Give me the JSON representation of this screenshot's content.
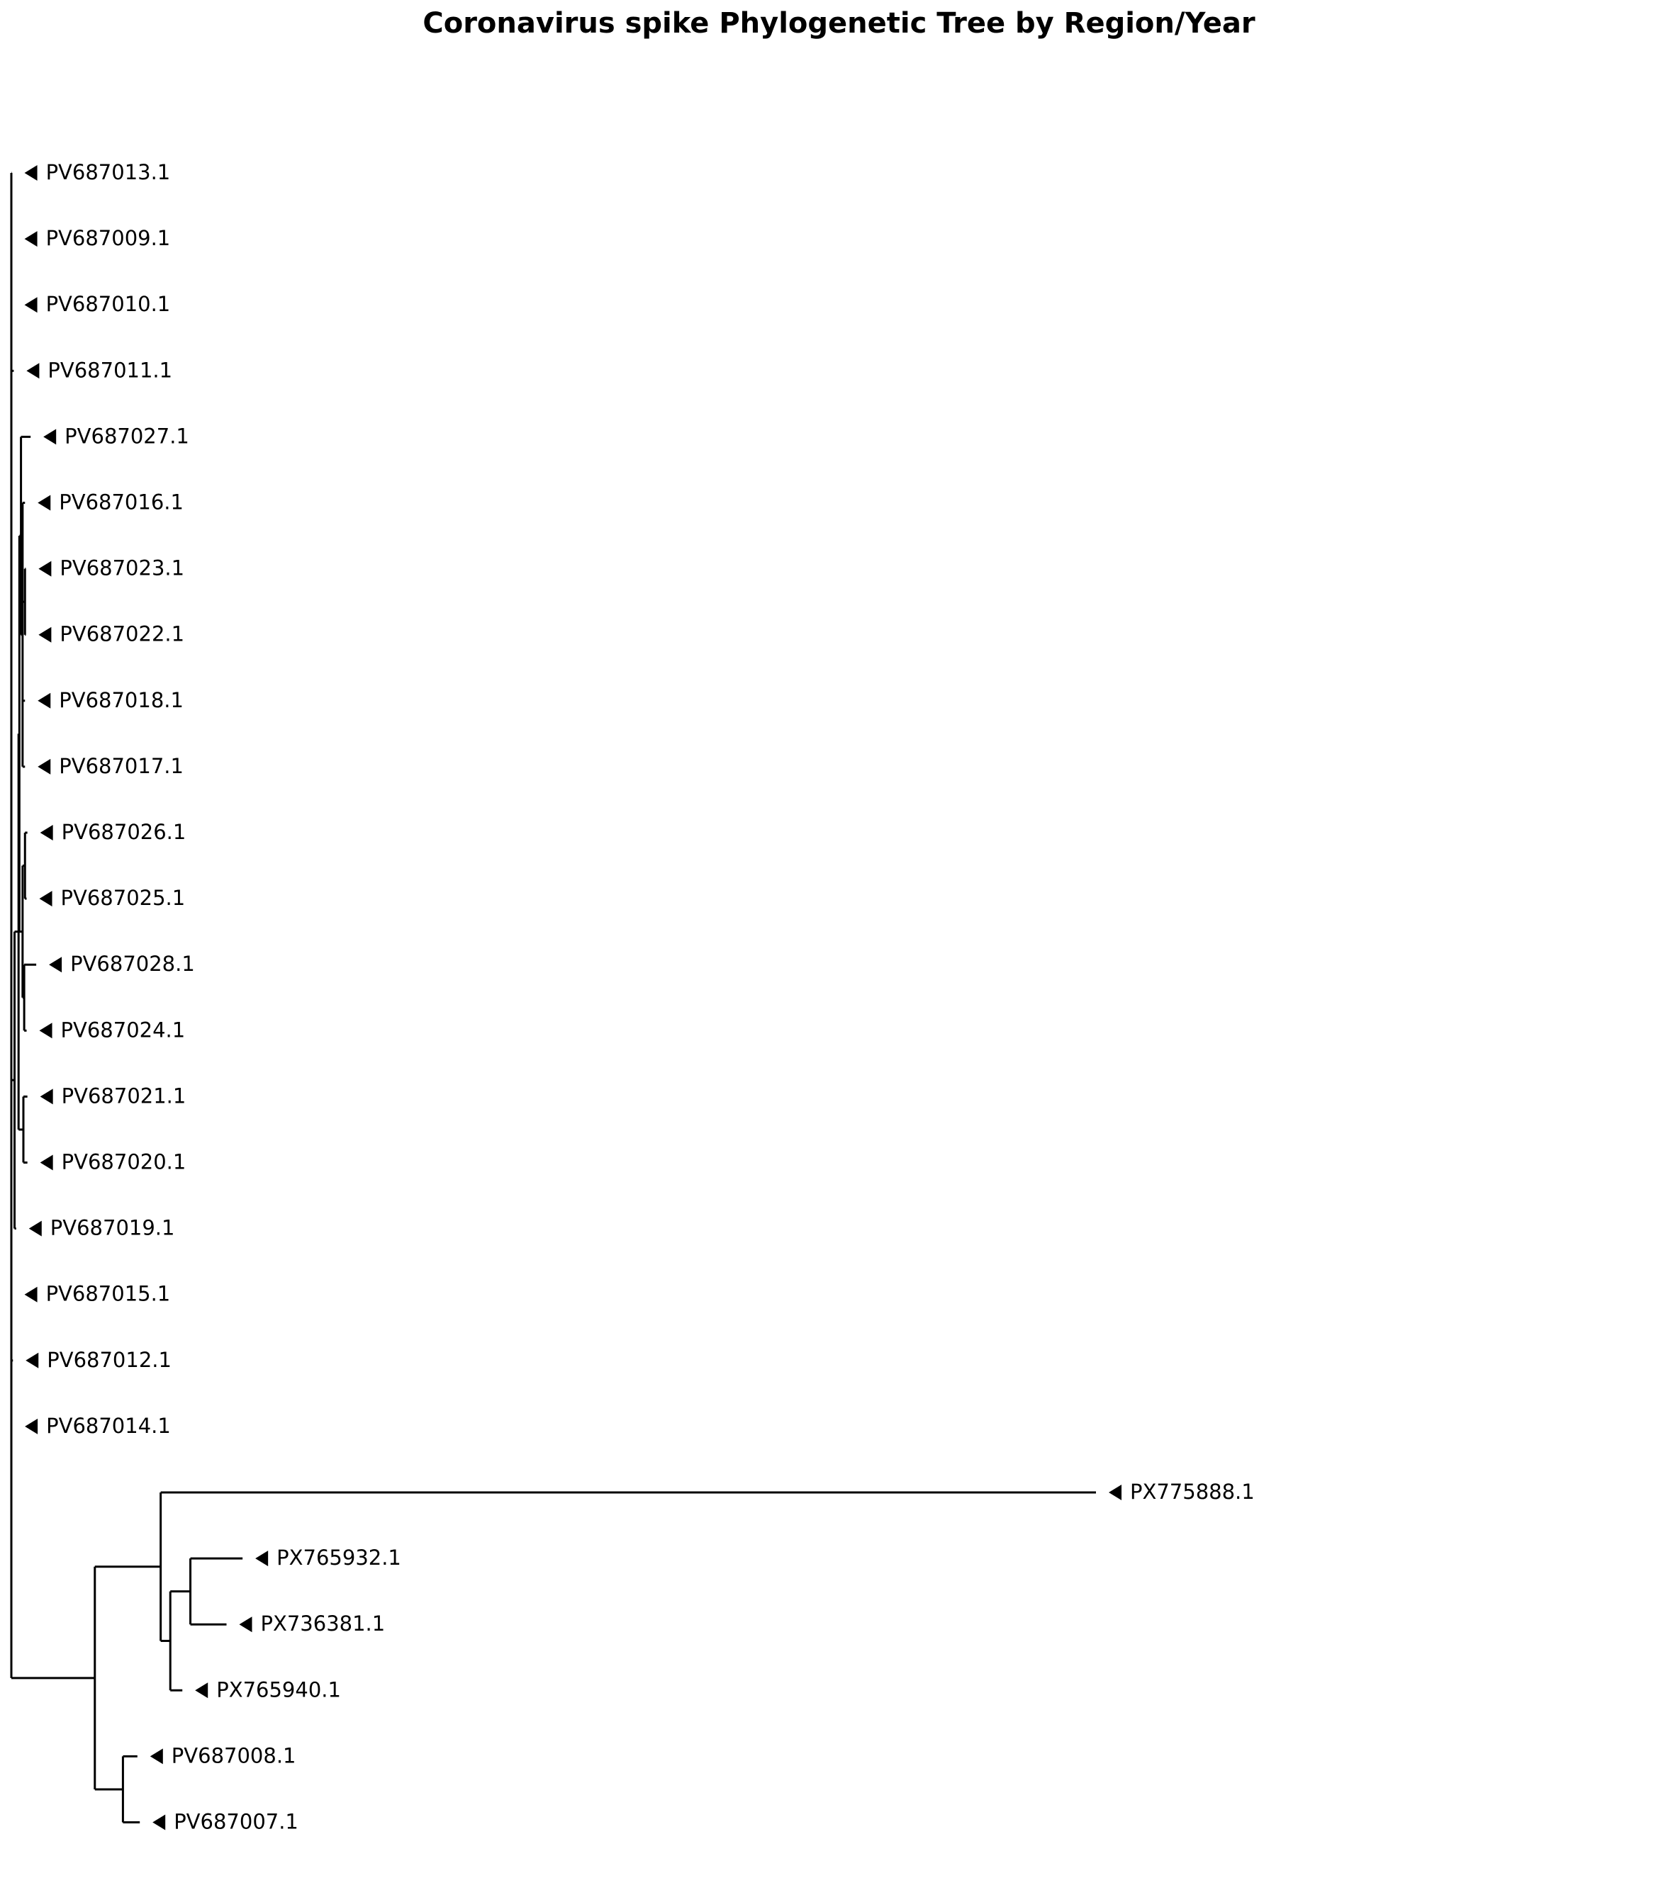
{
  "title": "Coronavirus spike Phylogenetic Tree by Region/Year",
  "tree": {
    "tips": [
      "PV687013.1",
      "PV687009.1",
      "PV687010.1",
      "PV687011.1",
      "PV687027.1",
      "PV687016.1",
      "PV687023.1",
      "PV687022.1",
      "PV687018.1",
      "PV687017.1",
      "PV687026.1",
      "PV687025.1",
      "PV687028.1",
      "PV687024.1",
      "PV687021.1",
      "PV687020.1",
      "PV687019.1",
      "PV687015.1",
      "PV687012.1",
      "PV687014.1",
      "PX775888.1",
      "PX765932.1",
      "PX736381.1",
      "PX765940.1",
      "PV687008.1",
      "PV687007.1"
    ],
    "newick": "(PV687013.1:0.00005,PV687009.1:0.00005,PV687010.1:0.00005,PV687011.1:0.0003,((((PV687027.1:0.0012,(PV687016.1:0.0003,(PV687023.1:0.0001,PV687022.1:0.0001):0.0003,PV687018.1:0.0003,PV687017.1:0.0003):0.0002):0.0002,((PV687026.1:0.0003,PV687025.1:0.0002):0.0003,(PV687028.1:0.0015,PV687024.1:0.0003):0.0002):0.0004):0.0001,(PV687021.1:0.0005,PV687020.1:0.0005):0.0006):0.0005,PV687019.1:0.0002):0.0004,PV687015.1:0.00005,PV687012.1:0.0002,PV687014.1:0.0001,(((PX775888.1:0.1165,((PX765932.1:0.0065,PX736381.1:0.0045):0.0025,PX765940.1:0.0015):0.0012):0.0082,(PV687008.1:0.0018,PV687007.1:0.0021):0.0035):0.0104):0.0)",
    "branch_color": "#000000",
    "tip_marker": "left-pointing-triangle"
  }
}
